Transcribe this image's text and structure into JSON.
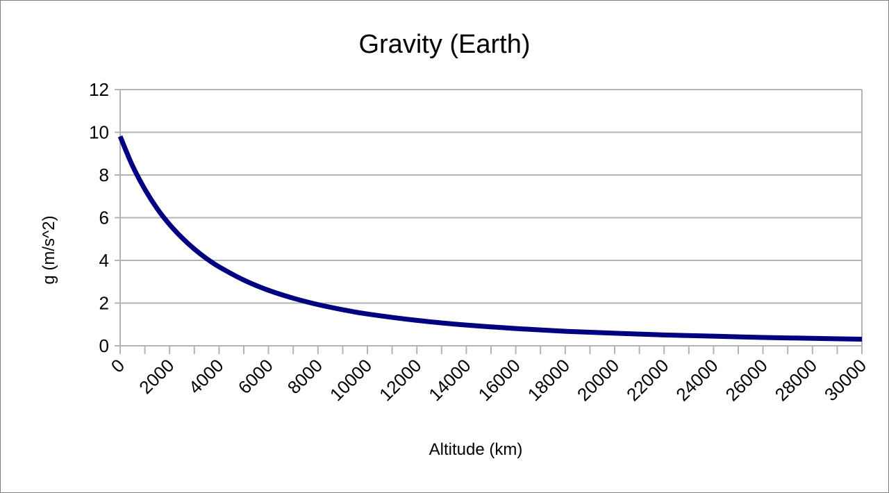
{
  "chart_data": {
    "type": "line",
    "title": "Gravity (Earth)",
    "xlabel": "Altitude (km)",
    "ylabel": "g (m/s^2)",
    "xlim": [
      0,
      30000
    ],
    "ylim": [
      0,
      12
    ],
    "x_ticks": [
      0,
      2000,
      4000,
      6000,
      8000,
      10000,
      12000,
      14000,
      16000,
      18000,
      20000,
      22000,
      24000,
      26000,
      28000,
      30000
    ],
    "y_ticks": [
      0,
      2,
      4,
      6,
      8,
      10,
      12
    ],
    "grid": true,
    "legend": "none",
    "series": [
      {
        "color": "#000080",
        "x": [
          0,
          500,
          1000,
          1500,
          2000,
          2500,
          3000,
          3500,
          4000,
          5000,
          6000,
          7000,
          8000,
          9000,
          10000,
          12000,
          14000,
          16000,
          18000,
          20000,
          22000,
          24000,
          26000,
          28000,
          30000
        ],
        "y": [
          9.81,
          8.43,
          7.33,
          6.42,
          5.68,
          5.06,
          4.53,
          4.08,
          3.7,
          3.08,
          2.6,
          2.23,
          1.93,
          1.69,
          1.49,
          1.19,
          0.97,
          0.81,
          0.68,
          0.59,
          0.51,
          0.45,
          0.39,
          0.35,
          0.31
        ]
      }
    ]
  }
}
